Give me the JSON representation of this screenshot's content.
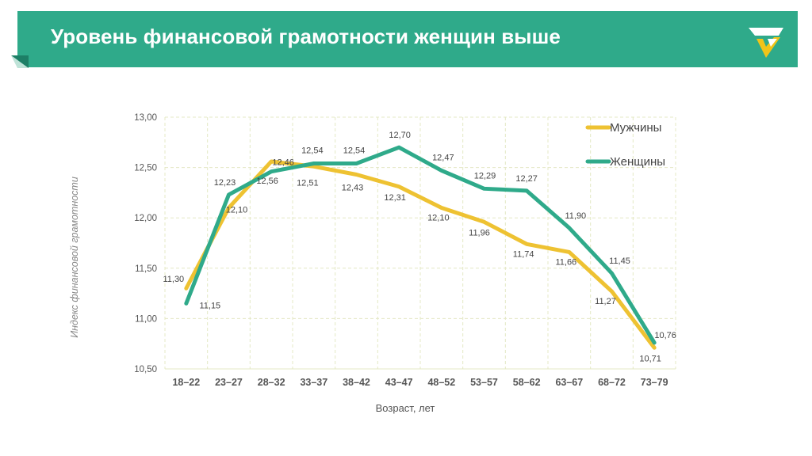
{
  "header": {
    "title": "Уровень финансовой грамотности женщин выше",
    "logo_icon": "checkmark-logo-icon",
    "colors": {
      "banner": "#2faa8a",
      "logo_white": "#ffffff",
      "logo_yellow": "#f0c419"
    }
  },
  "chart_data": {
    "type": "line",
    "categories": [
      "18–22",
      "23–27",
      "28–32",
      "33–37",
      "38–42",
      "43–47",
      "48–52",
      "53–57",
      "58–62",
      "63–67",
      "68–72",
      "73–79"
    ],
    "series": [
      {
        "name": "Мужчины",
        "color": "#eec232",
        "values": [
          11.3,
          12.1,
          12.56,
          12.51,
          12.43,
          12.31,
          12.1,
          11.96,
          11.74,
          11.66,
          11.27,
          10.71
        ],
        "labels": [
          "11,30",
          "12,10",
          "12,56",
          "12,51",
          "12,43",
          "12,31",
          "12,10",
          "11,96",
          "11,74",
          "11,66",
          "11,27",
          "10,71"
        ]
      },
      {
        "name": "Женщины",
        "color": "#2faa8a",
        "values": [
          11.15,
          12.23,
          12.46,
          12.54,
          12.54,
          12.7,
          12.47,
          12.29,
          12.27,
          11.9,
          11.45,
          10.76
        ],
        "labels": [
          "11,15",
          "12,23",
          "12,46",
          "12,54",
          "12,54",
          "12,70",
          "12,47",
          "12,29",
          "12,27",
          "11,90",
          "11,45",
          "10,76"
        ]
      }
    ],
    "yticks": [
      10.5,
      11.0,
      11.5,
      12.0,
      12.5,
      13.0
    ],
    "ytick_labels": [
      "10,50",
      "11,00",
      "11,50",
      "12,00",
      "12,50",
      "13,00"
    ],
    "ylim": [
      10.5,
      13.0
    ],
    "xlabel": "Возраст, лет",
    "ylabel": "Индекс финансовой грамотности",
    "grid": true,
    "grid_color": "#e4e8c4",
    "legend_position": "top-right"
  }
}
